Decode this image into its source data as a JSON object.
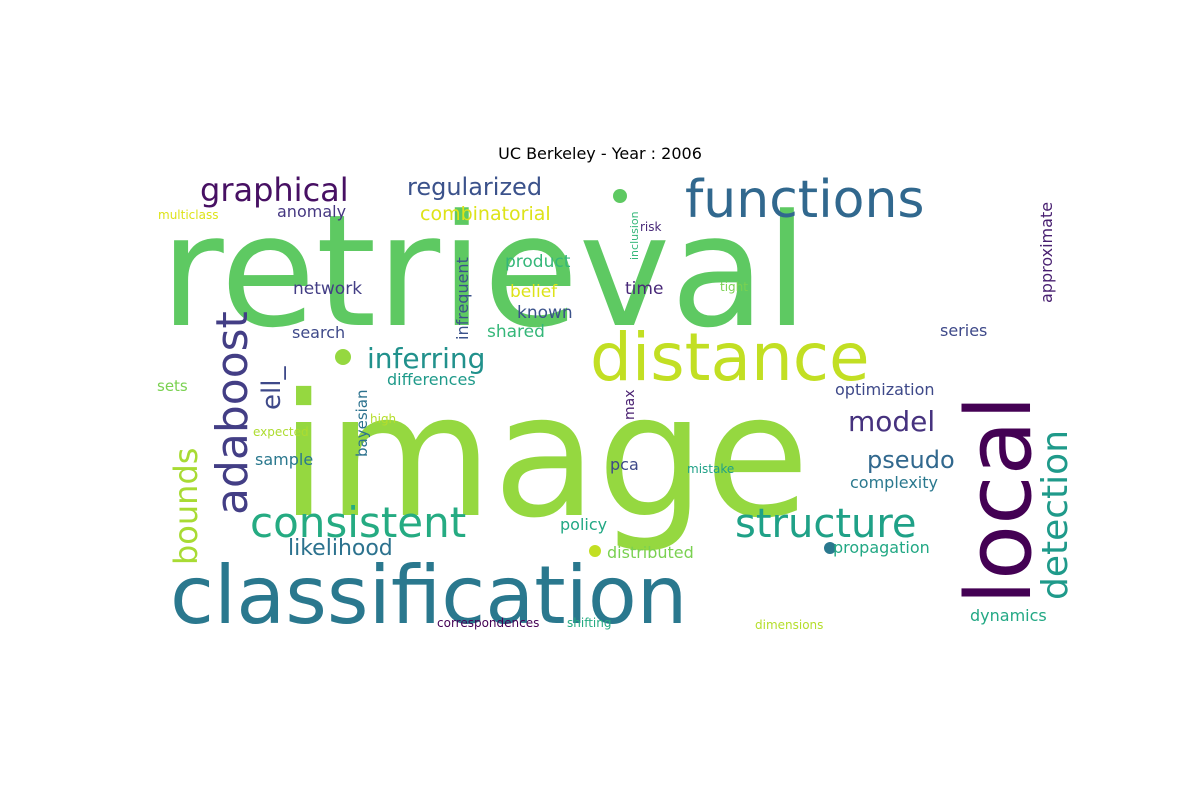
{
  "title": "UC Berkeley - Year : 2006",
  "words": [
    {
      "text": "retrieval",
      "color": "#5ec962"
    },
    {
      "text": "image",
      "color": "#95d840"
    },
    {
      "text": "classification",
      "color": "#2a788e"
    },
    {
      "text": "local",
      "color": "#440154"
    },
    {
      "text": "distance",
      "color": "#c2df23"
    },
    {
      "text": "functions",
      "color": "#31688e"
    },
    {
      "text": "adaboost",
      "color": "#433e85"
    },
    {
      "text": "consistent",
      "color": "#25ab82"
    },
    {
      "text": "structure",
      "color": "#1fa187"
    },
    {
      "text": "detection",
      "color": "#1f9a8a"
    },
    {
      "text": "graphical",
      "color": "#471063"
    },
    {
      "text": "bounds",
      "color": "#a8db34"
    },
    {
      "text": "regularized",
      "color": "#3b528b"
    },
    {
      "text": "inferring",
      "color": "#21918c"
    },
    {
      "text": "model",
      "color": "#46327e"
    },
    {
      "text": "ell_",
      "color": "#3e4989"
    },
    {
      "text": "pseudo",
      "color": "#31688e"
    },
    {
      "text": "likelihood",
      "color": "#2c728e"
    },
    {
      "text": "combinatorial",
      "color": "#dde318"
    },
    {
      "text": "anomaly",
      "color": "#453781"
    },
    {
      "text": "product",
      "color": "#35b779"
    },
    {
      "text": "network",
      "color": "#433e85"
    },
    {
      "text": "belief",
      "color": "#dde318"
    },
    {
      "text": "time",
      "color": "#482878"
    },
    {
      "text": "known",
      "color": "#3b528b"
    },
    {
      "text": "shared",
      "color": "#35b779"
    },
    {
      "text": "search",
      "color": "#3e4989"
    },
    {
      "text": "differences",
      "color": "#1f9a8a"
    },
    {
      "text": "optimization",
      "color": "#3e4989"
    },
    {
      "text": "complexity",
      "color": "#2a788e"
    },
    {
      "text": "series",
      "color": "#3e4989"
    },
    {
      "text": "approximate",
      "color": "#481f70"
    },
    {
      "text": "infrequent",
      "color": "#3b528b"
    },
    {
      "text": "bayesian",
      "color": "#2c728e"
    },
    {
      "text": "sample",
      "color": "#2a788e"
    },
    {
      "text": "pca",
      "color": "#3e4989"
    },
    {
      "text": "policy",
      "color": "#22a884"
    },
    {
      "text": "distributed",
      "color": "#7ad151"
    },
    {
      "text": "propagation",
      "color": "#22a884"
    },
    {
      "text": "dynamics",
      "color": "#22a884"
    },
    {
      "text": "sets",
      "color": "#7ad151"
    },
    {
      "text": "max",
      "color": "#481f70"
    },
    {
      "text": "multiclass",
      "color": "#dde318"
    },
    {
      "text": "inclusion",
      "color": "#35b779"
    },
    {
      "text": "risk",
      "color": "#482878"
    },
    {
      "text": "tight",
      "color": "#7ad151"
    },
    {
      "text": "high",
      "color": "#b5de2b"
    },
    {
      "text": "expected",
      "color": "#addc30"
    },
    {
      "text": "mistake",
      "color": "#1fa187"
    },
    {
      "text": "correspondences",
      "color": "#440154"
    },
    {
      "text": "shifting",
      "color": "#25ab82"
    },
    {
      "text": "dimensions",
      "color": "#b5de2b"
    }
  ]
}
